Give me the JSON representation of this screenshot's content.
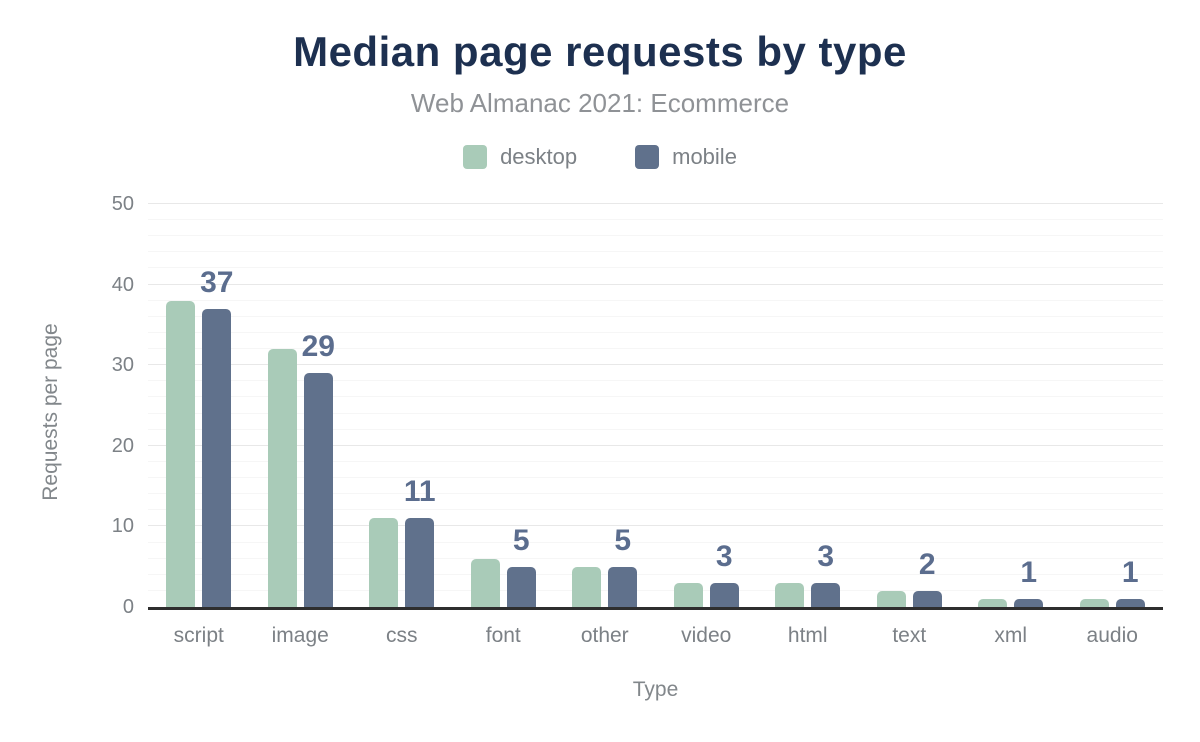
{
  "title": "Median page requests by type",
  "subtitle": "Web Almanac 2021: Ecommerce",
  "legend": {
    "items": [
      {
        "label": "desktop",
        "color": "#a9cbb8"
      },
      {
        "label": "mobile",
        "color": "#60718c"
      }
    ]
  },
  "chart_data": {
    "type": "bar",
    "title": "Median page requests by type",
    "subtitle": "Web Almanac 2021: Ecommerce",
    "categories": [
      "script",
      "image",
      "css",
      "font",
      "other",
      "video",
      "html",
      "text",
      "xml",
      "audio"
    ],
    "series": [
      {
        "name": "desktop",
        "color": "#a9cbb8",
        "values": [
          38,
          32,
          11,
          6,
          5,
          3,
          3,
          2,
          1,
          1
        ]
      },
      {
        "name": "mobile",
        "color": "#60718c",
        "values": [
          37,
          29,
          11,
          5,
          5,
          3,
          3,
          2,
          1,
          1
        ]
      }
    ],
    "bar_labels": {
      "series": "mobile",
      "values": [
        37,
        29,
        11,
        5,
        5,
        3,
        3,
        2,
        1,
        1
      ]
    },
    "xlabel": "Type",
    "ylabel": "Requests per page",
    "ylim": [
      0,
      50
    ],
    "yticks": [
      0,
      10,
      20,
      30,
      40,
      50
    ],
    "minor_grid_step": 2,
    "grid": true,
    "legend_position": "top",
    "colors": {
      "title": "#1d3050",
      "subtitle": "#8f9296",
      "axis_text": "#7c8186",
      "data_label": "#5b6d8e",
      "axis_line": "#2e2e2e",
      "major_grid": "#e8e8e8",
      "minor_grid": "#f6f6f6",
      "background": "#ffffff"
    }
  }
}
